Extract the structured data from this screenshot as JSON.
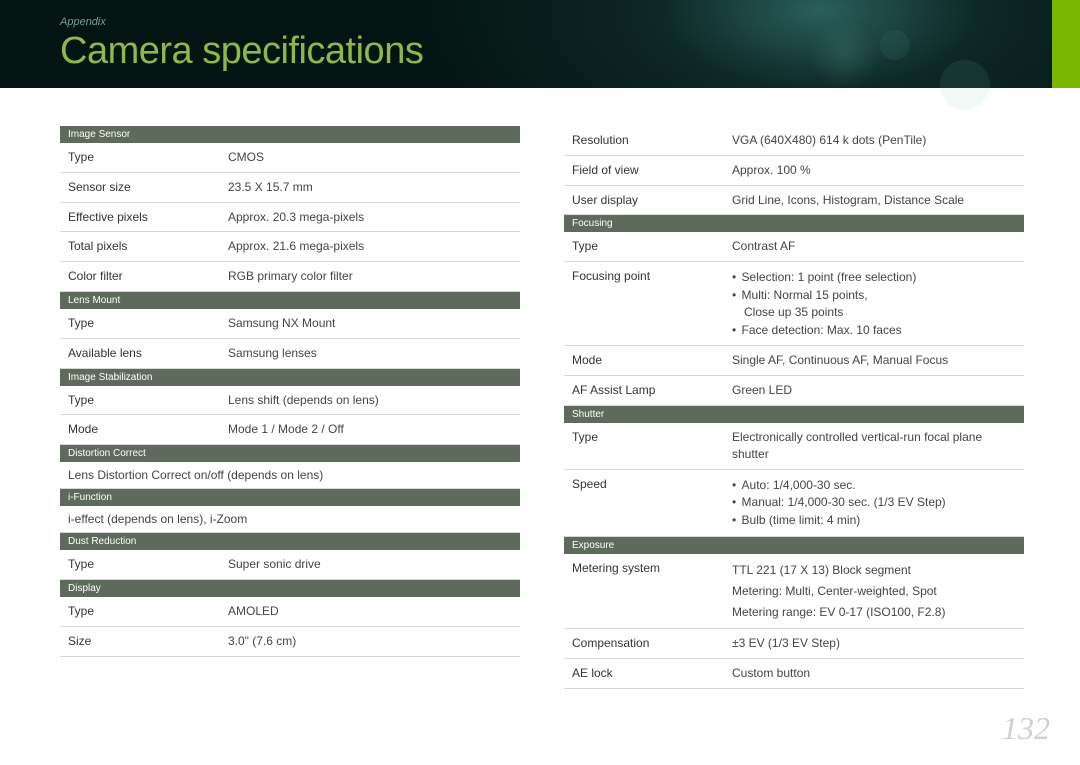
{
  "breadcrumb": "Appendix",
  "title": "Camera specifications",
  "page_number": "132",
  "colors": {
    "section_header_bg": "#5e6a5b",
    "title_color": "#8fb84a",
    "tab_color": "#7ab800"
  },
  "left_column": [
    {
      "type": "header",
      "label": "Image Sensor"
    },
    {
      "type": "row",
      "key": "Type",
      "value": "CMOS"
    },
    {
      "type": "row",
      "key": "Sensor size",
      "value": "23.5 X 15.7 mm"
    },
    {
      "type": "row",
      "key": "Effective pixels",
      "value": "Approx. 20.3 mega-pixels"
    },
    {
      "type": "row",
      "key": "Total pixels",
      "value": "Approx. 21.6 mega-pixels"
    },
    {
      "type": "row",
      "key": "Color filter",
      "value": "RGB primary color filter"
    },
    {
      "type": "header",
      "label": "Lens Mount"
    },
    {
      "type": "row",
      "key": "Type",
      "value": "Samsung NX Mount"
    },
    {
      "type": "row",
      "key": "Available lens",
      "value": "Samsung lenses"
    },
    {
      "type": "header",
      "label": "Image Stabilization"
    },
    {
      "type": "row",
      "key": "Type",
      "value": "Lens shift (depends on lens)"
    },
    {
      "type": "row",
      "key": "Mode",
      "value": "Mode 1 / Mode 2 / Off"
    },
    {
      "type": "header",
      "label": "Distortion Correct"
    },
    {
      "type": "full",
      "value": "Lens Distortion Correct on/off (depends on lens)"
    },
    {
      "type": "header",
      "label": "i-Function"
    },
    {
      "type": "full",
      "value": "i-effect (depends on lens), i-Zoom"
    },
    {
      "type": "header",
      "label": "Dust Reduction"
    },
    {
      "type": "row",
      "key": "Type",
      "value": "Super sonic drive"
    },
    {
      "type": "header",
      "label": "Display"
    },
    {
      "type": "row",
      "key": "Type",
      "value": "AMOLED"
    },
    {
      "type": "row",
      "key": "Size",
      "value": "3.0\" (7.6 cm)"
    }
  ],
  "right_column": [
    {
      "type": "row",
      "key": "Resolution",
      "value": "VGA (640X480) 614 k dots (PenTile)"
    },
    {
      "type": "row",
      "key": "Field of view",
      "value": "Approx. 100 %"
    },
    {
      "type": "row",
      "key": "User display",
      "value": "Grid Line, Icons, Histogram, Distance Scale"
    },
    {
      "type": "header",
      "label": "Focusing"
    },
    {
      "type": "row",
      "key": "Type",
      "value": "Contrast AF"
    },
    {
      "type": "row_bullets",
      "key": "Focusing point",
      "bullets": [
        "Selection: 1 point (free selection)",
        "Multi: Normal 15 points,\nClose up 35 points",
        "Face detection: Max. 10 faces"
      ]
    },
    {
      "type": "row",
      "key": "Mode",
      "value": "Single AF, Continuous AF, Manual Focus"
    },
    {
      "type": "row",
      "key": "AF Assist Lamp",
      "value": "Green LED"
    },
    {
      "type": "header",
      "label": "Shutter"
    },
    {
      "type": "row",
      "key": "Type",
      "value": "Electronically controlled vertical-run focal plane shutter"
    },
    {
      "type": "row_bullets",
      "key": "Speed",
      "bullets": [
        "Auto: 1/4,000-30 sec.",
        "Manual: 1/4,000-30 sec. (1/3 EV Step)",
        "Bulb (time limit: 4 min)"
      ]
    },
    {
      "type": "header",
      "label": "Exposure"
    },
    {
      "type": "row_multi",
      "key": "Metering system",
      "lines": [
        "TTL 221 (17 X 13) Block segment",
        "Metering: Multi, Center-weighted, Spot",
        "Metering range: EV 0-17 (ISO100, F2.8)"
      ]
    },
    {
      "type": "row",
      "key": "Compensation",
      "value": "±3 EV (1/3 EV Step)"
    },
    {
      "type": "row",
      "key": "AE lock",
      "value": "Custom button"
    }
  ]
}
